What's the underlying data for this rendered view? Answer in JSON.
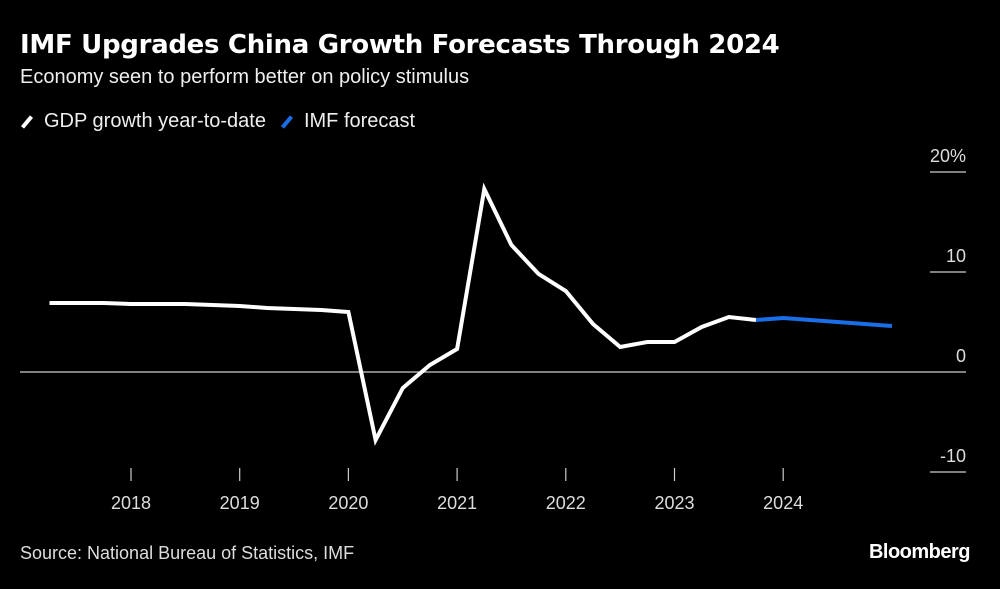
{
  "title": "IMF Upgrades China Growth Forecasts Through 2024",
  "subtitle": "Economy seen to perform better on policy stimulus",
  "source": "Source: National Bureau of Statistics, IMF",
  "brand": "Bloomberg",
  "chart_data": {
    "type": "line",
    "title": "IMF Upgrades China Growth Forecasts Through 2024",
    "ylabel": "",
    "xlabel": "",
    "ylim": [
      -10,
      20
    ],
    "y_ticks": [
      "20%",
      "10",
      "0",
      "-10"
    ],
    "y_tick_values": [
      20,
      10,
      0,
      -10
    ],
    "x_ticks": [
      "2018",
      "2019",
      "2020",
      "2021",
      "2022",
      "2023",
      "2024"
    ],
    "legend_placement": "top-left",
    "grid": false,
    "series": [
      {
        "name": "GDP growth year-to-date",
        "color": "#ffffff",
        "x": [
          "2017-Q1",
          "2017-Q2",
          "2017-Q3",
          "2017-Q4",
          "2018-Q1",
          "2018-Q2",
          "2018-Q3",
          "2018-Q4",
          "2019-Q1",
          "2019-Q2",
          "2019-Q3",
          "2019-Q4",
          "2020-Q1",
          "2020-Q2",
          "2020-Q3",
          "2020-Q4",
          "2021-Q1",
          "2021-Q2",
          "2021-Q3",
          "2021-Q4",
          "2022-Q1",
          "2022-Q2",
          "2022-Q3",
          "2022-Q4",
          "2023-Q1",
          "2023-Q2",
          "2023-Q3"
        ],
        "values": [
          6.9,
          6.9,
          6.9,
          6.8,
          6.8,
          6.8,
          6.7,
          6.6,
          6.4,
          6.3,
          6.2,
          6.0,
          -6.8,
          -1.6,
          0.7,
          2.3,
          18.3,
          12.7,
          9.8,
          8.1,
          4.8,
          2.5,
          3.0,
          3.0,
          4.5,
          5.5,
          5.2
        ]
      },
      {
        "name": "IMF forecast",
        "color": "#1a6ee8",
        "x": [
          "2023-Q3",
          "2023-Q4",
          "2024-Q1",
          "2024-Q2",
          "2024-Q3",
          "2024-Q4"
        ],
        "values": [
          5.2,
          5.4,
          5.2,
          5.0,
          4.8,
          4.6
        ]
      }
    ]
  }
}
